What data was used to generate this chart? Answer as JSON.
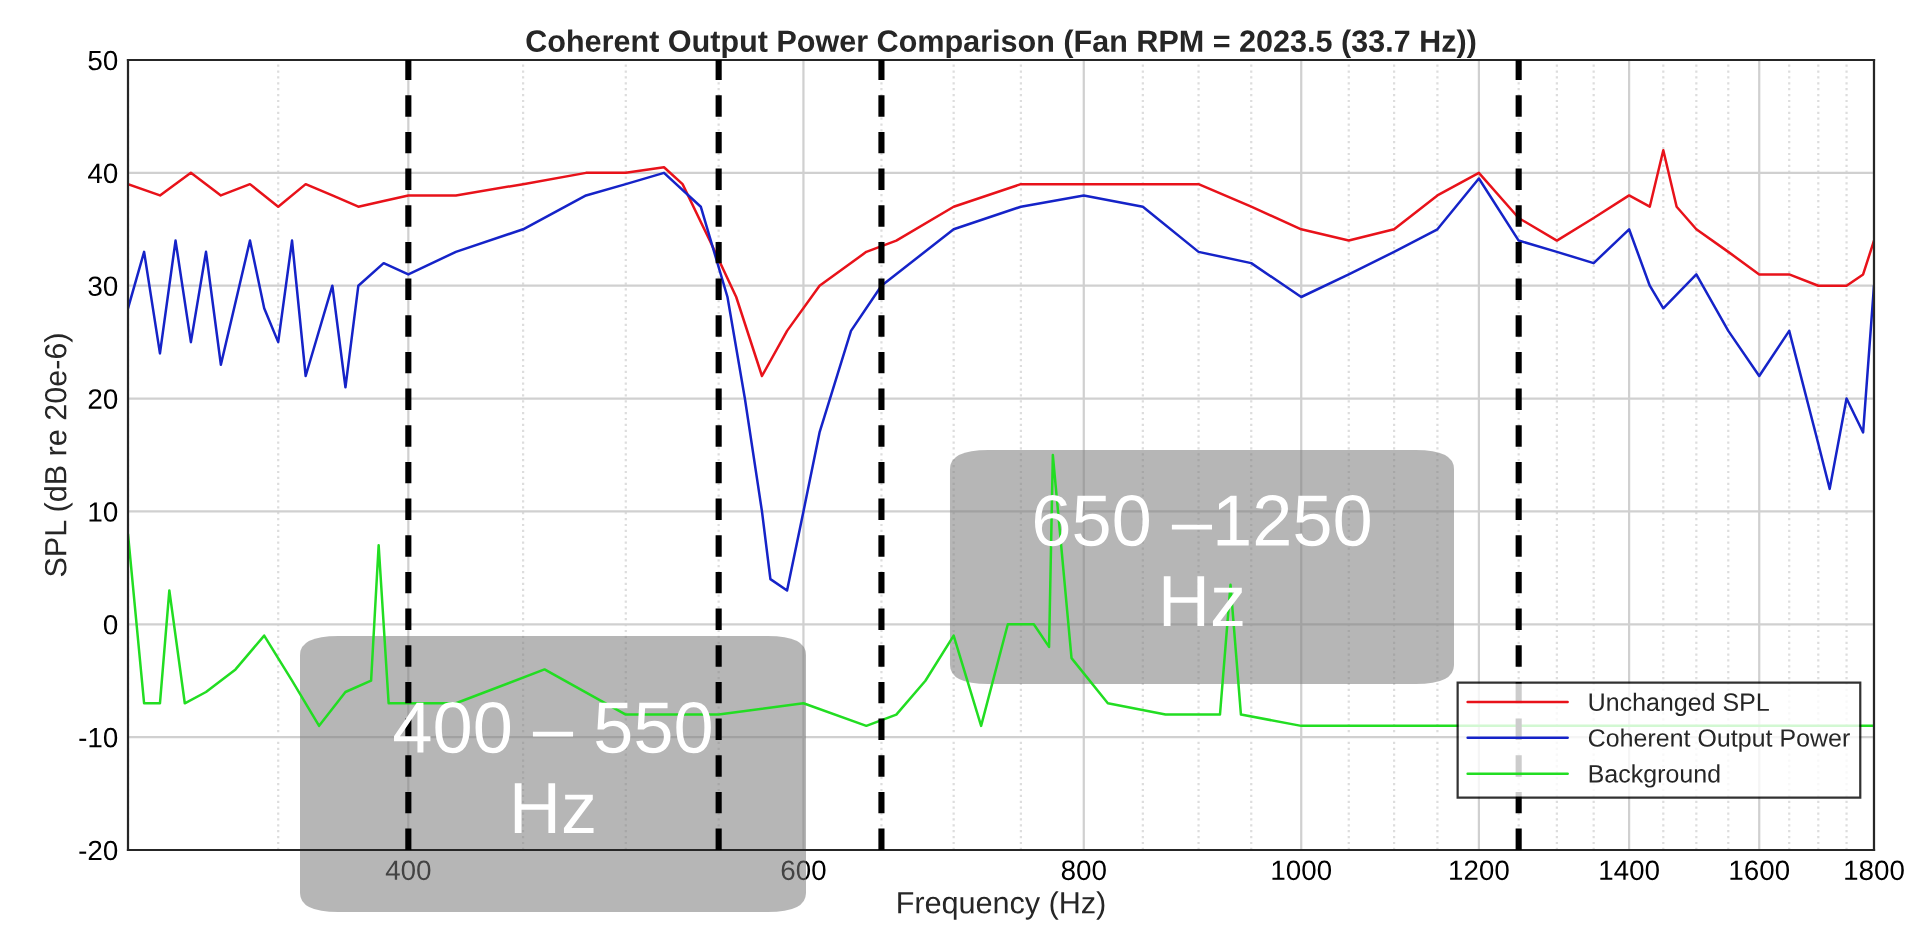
{
  "chart_data": {
    "type": "line",
    "title": "Coherent Output Power Comparison (Fan RPM = 2023.5 (33.7 Hz))",
    "xlabel": "Frequency (Hz)",
    "ylabel": "SPL (dB re 20e-6)",
    "log": "x",
    "xlim": [
      300,
      1800
    ],
    "xticks": [
      400,
      600,
      800,
      1000,
      1200,
      1400,
      1600,
      1800
    ],
    "ylim": [
      -20,
      50
    ],
    "yticks": [
      -20,
      -10,
      0,
      10,
      20,
      30,
      40,
      50
    ],
    "grid": true,
    "legend": "bottom right",
    "line_style": "solid",
    "marker": "none",
    "series": [
      {
        "name": "Unchanged SPL",
        "color": "#e8121a",
        "x": [
          300,
          310,
          320,
          330,
          340,
          350,
          360,
          370,
          380,
          390,
          400,
          420,
          450,
          480,
          500,
          520,
          530,
          545,
          560,
          575,
          590,
          610,
          640,
          660,
          700,
          750,
          800,
          850,
          900,
          950,
          1000,
          1050,
          1100,
          1150,
          1200,
          1250,
          1300,
          1350,
          1400,
          1430,
          1450,
          1470,
          1500,
          1550,
          1600,
          1650,
          1700,
          1750,
          1780,
          1800
        ],
        "values": [
          39,
          38,
          40,
          38,
          39,
          37,
          39,
          38,
          37,
          37.5,
          38,
          38,
          39,
          40,
          40,
          40.5,
          39,
          34,
          29,
          22,
          26,
          30,
          33,
          34,
          37,
          39,
          39,
          39,
          39,
          37,
          35,
          34,
          35,
          38,
          40,
          36,
          34,
          36,
          38,
          37,
          42,
          37,
          35,
          33,
          31,
          31,
          30,
          30,
          31,
          34
        ]
      },
      {
        "name": "Coherent Output Power",
        "color": "#1523c8",
        "x": [
          300,
          305,
          310,
          315,
          320,
          325,
          330,
          340,
          345,
          350,
          355,
          360,
          370,
          375,
          380,
          390,
          400,
          420,
          450,
          480,
          500,
          520,
          540,
          555,
          565,
          575,
          580,
          590,
          600,
          610,
          630,
          650,
          700,
          750,
          800,
          850,
          900,
          950,
          1000,
          1050,
          1100,
          1150,
          1200,
          1250,
          1300,
          1350,
          1400,
          1430,
          1450,
          1500,
          1550,
          1600,
          1650,
          1700,
          1720,
          1750,
          1780,
          1800
        ],
        "values": [
          28,
          33,
          24,
          34,
          25,
          33,
          23,
          34,
          28,
          25,
          34,
          22,
          30,
          21,
          30,
          32,
          31,
          33,
          35,
          38,
          39,
          40,
          37,
          29,
          20,
          10,
          4,
          3,
          10,
          17,
          26,
          30,
          35,
          37,
          38,
          37,
          33,
          32,
          29,
          31,
          33,
          35,
          39.5,
          34,
          33,
          32,
          35,
          30,
          28,
          31,
          26,
          22,
          26,
          16,
          12,
          20,
          17,
          30
        ]
      },
      {
        "name": "Background",
        "color": "#22dd22",
        "x": [
          300,
          305,
          310,
          313,
          318,
          325,
          335,
          345,
          355,
          365,
          375,
          385,
          388,
          392,
          420,
          460,
          500,
          550,
          600,
          640,
          660,
          680,
          700,
          720,
          740,
          760,
          772,
          775,
          790,
          820,
          870,
          920,
          930,
          940,
          1000,
          1100,
          1140,
          1200,
          1300,
          1400,
          1500,
          1600,
          1700,
          1770,
          1800
        ],
        "values": [
          8,
          -7,
          -7,
          3,
          -7,
          -6,
          -4,
          -1,
          -5,
          -9,
          -6,
          -5,
          7,
          -7,
          -7,
          -4,
          -8,
          -8,
          -7,
          -9,
          -8,
          -5,
          -1,
          -9,
          0,
          0,
          -2,
          15,
          -3,
          -7,
          -8,
          -8,
          3.5,
          -8,
          -9,
          -9,
          -9,
          null,
          null,
          null,
          null,
          null,
          null,
          -9,
          -9
        ]
      }
    ],
    "ref_lines": [
      {
        "axis": "x",
        "value": 400,
        "color": "#000000",
        "line_style": "dashed"
      },
      {
        "axis": "x",
        "value": 550,
        "color": "#000000",
        "line_style": "dashed"
      },
      {
        "axis": "x",
        "value": 650,
        "color": "#000000",
        "line_style": "dashed"
      },
      {
        "axis": "x",
        "value": 1250,
        "color": "#000000",
        "line_style": "dashed"
      }
    ],
    "annotations": [
      "400 – 550\nHz",
      "650 –1250\nHz"
    ]
  }
}
